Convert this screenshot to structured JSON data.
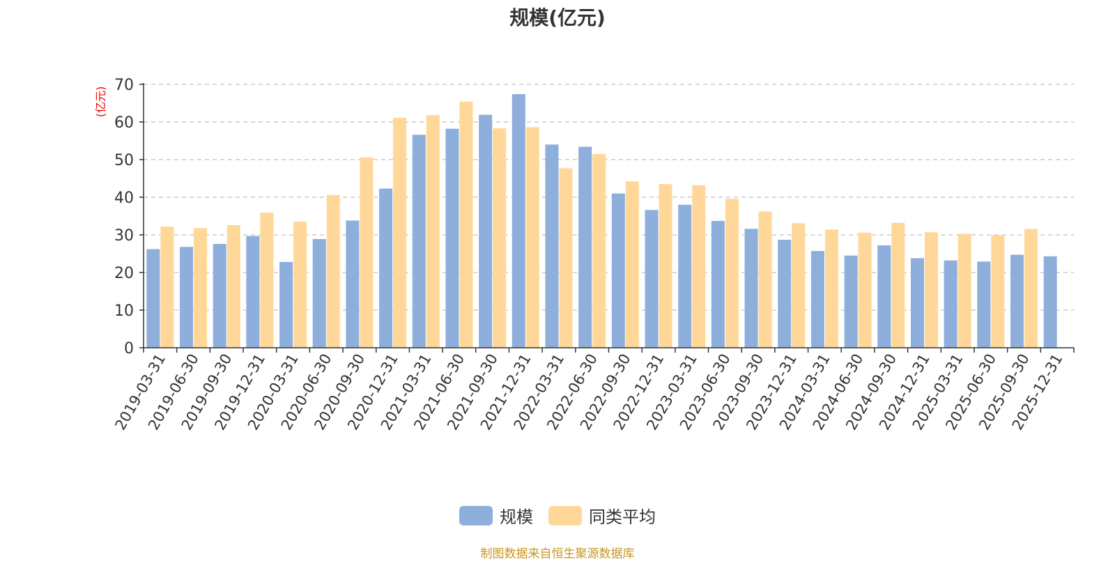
{
  "colors": {
    "series1": "#8eaedb",
    "series2": "#ffd899",
    "axis": "#333333",
    "grid": "#cccccc",
    "unit": "#ee0000",
    "source": "#c8961e"
  },
  "chart_data": {
    "type": "bar",
    "title": "规模(亿元)",
    "ylabel": "(亿元)",
    "xlabel": "",
    "ylim": [
      0,
      70
    ],
    "yticks": [
      0,
      10,
      20,
      30,
      40,
      50,
      60,
      70
    ],
    "grid": true,
    "legend_position": "bottom-center",
    "categories": [
      "2019-03-31",
      "2019-06-30",
      "2019-09-30",
      "2019-12-31",
      "2020-03-31",
      "2020-06-30",
      "2020-09-30",
      "2020-12-31",
      "2021-03-31",
      "2021-06-30",
      "2021-09-30",
      "2021-12-31",
      "2022-03-31",
      "2022-06-30",
      "2022-09-30",
      "2022-12-31",
      "2023-03-31",
      "2023-06-30",
      "2023-09-30",
      "2023-12-31",
      "2024-03-31",
      "2024-06-30",
      "2024-09-30",
      "2024-12-31",
      "2025-03-31",
      "2025-06-30",
      "2025-09-30",
      "2025-12-31"
    ],
    "series": [
      {
        "name": "规模",
        "values": [
          26.2,
          26.8,
          27.6,
          29.7,
          22.8,
          28.9,
          33.8,
          42.3,
          56.6,
          58.2,
          61.9,
          67.4,
          54.0,
          53.4,
          41.0,
          36.6,
          38.0,
          33.7,
          31.6,
          28.7,
          25.7,
          24.5,
          27.2,
          23.8,
          23.2,
          22.9,
          24.7,
          24.3
        ]
      },
      {
        "name": "同类平均",
        "values": [
          32.2,
          31.8,
          32.6,
          35.9,
          33.5,
          40.6,
          50.6,
          61.1,
          61.8,
          65.4,
          58.3,
          58.6,
          47.7,
          51.5,
          44.2,
          43.5,
          43.2,
          39.6,
          36.2,
          33.1,
          31.4,
          30.6,
          33.2,
          30.7,
          30.3,
          29.9,
          31.6,
          null
        ]
      }
    ]
  },
  "source_text": "制图数据来自恒生聚源数据库"
}
